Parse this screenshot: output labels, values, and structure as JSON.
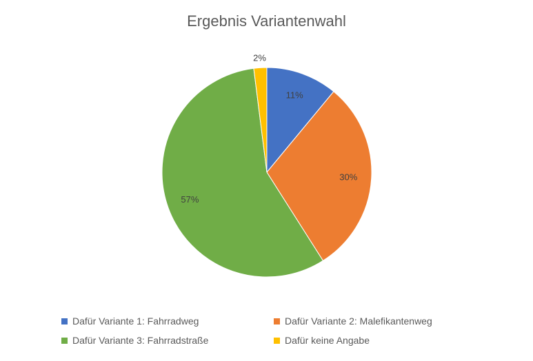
{
  "chart_data": {
    "type": "pie",
    "title": "Ergebnis Variantenwahl",
    "slices": [
      {
        "label": "Dafür Variante 1: Fahrradweg",
        "value": 11,
        "value_label": "11%",
        "color": "#4472C4"
      },
      {
        "label": "Dafür Variante 2: Malefikantenweg",
        "value": 30,
        "value_label": "30%",
        "color": "#ED7D31"
      },
      {
        "label": "Dafür Variante 3: Fahrradstraße",
        "value": 57,
        "value_label": "57%",
        "color": "#70AD47"
      },
      {
        "label": "Dafür keine Angabe",
        "value": 2,
        "value_label": "2%",
        "color": "#FFC000"
      }
    ],
    "legend_position": "bottom"
  }
}
